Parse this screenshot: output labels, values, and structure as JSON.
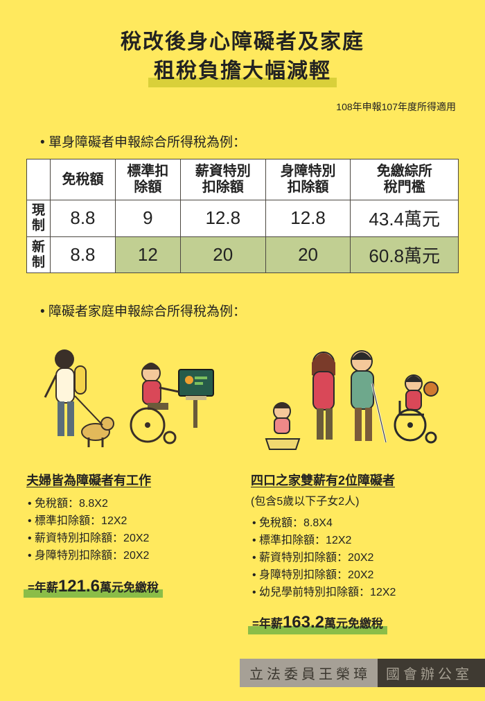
{
  "title": {
    "line1": "稅改後身心障礙者及家庭",
    "line2": "租稅負擔大幅減輕"
  },
  "subtitle": "108年申報107年度所得適用",
  "section1_heading": "單身障礙者申報綜合所得稅為例：",
  "table": {
    "columns": [
      "免稅額",
      "標準扣除額",
      "薪資特別扣除額",
      "身障特別扣除額",
      "免繳綜所稅門檻"
    ],
    "rows": [
      {
        "label": "現制",
        "cells": [
          "8.8",
          "9",
          "12.8",
          "12.8",
          "43.4萬元"
        ],
        "highlight": [
          false,
          false,
          false,
          false,
          false
        ]
      },
      {
        "label": "新制",
        "cells": [
          "8.8",
          "12",
          "20",
          "20",
          "60.8萬元"
        ],
        "highlight": [
          false,
          true,
          true,
          true,
          true
        ]
      }
    ],
    "border_color": "#4b4740",
    "highlight_color": "#c1cf92",
    "bg_color": "#ffffff"
  },
  "section2_heading": "障礙者家庭申報綜合所得稅為例：",
  "examples": [
    {
      "title": "夫婦皆為障礙者有工作",
      "sub": "",
      "items": [
        "免稅額：8.8X2",
        "標準扣除額：12X2",
        "薪資特別扣除額：20X2",
        "身障特別扣除額：20X2"
      ],
      "result_prefix": "=年薪",
      "result_value": "121.6",
      "result_suffix": "萬元免繳稅"
    },
    {
      "title": "四口之家雙薪有2位障礙者",
      "sub": "(包含5歲以下子女2人)",
      "items": [
        "免稅額：8.8X4",
        "標準扣除額：12X2",
        "薪資特別扣除額：20X2",
        "身障特別扣除額：20X2",
        "幼兒學前特別扣除額：12X2"
      ],
      "result_prefix": "=年薪",
      "result_value": "163.2",
      "result_suffix": "萬元免繳稅"
    }
  ],
  "footer": {
    "a": "立法委員王榮璋",
    "b": "國會辦公室"
  },
  "colors": {
    "page_bg": "#ffe95e",
    "title_highlight": "#d9d03a",
    "result_highlight": "#8bbd48",
    "footer_light_bg": "#a6a096",
    "footer_dark_bg": "#3f3a32"
  }
}
